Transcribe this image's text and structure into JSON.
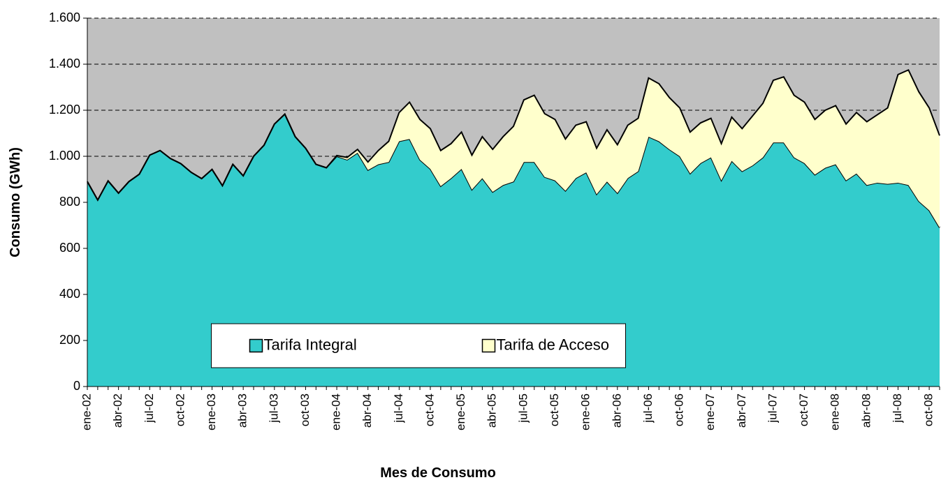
{
  "chart_data": {
    "type": "stacked_area",
    "x_label": "Mes de Consumo",
    "y_label": "Consumo (GWh)",
    "categories": [
      "ene-02",
      null,
      null,
      "abr-02",
      null,
      null,
      "jul-02",
      null,
      null,
      "oct-02",
      null,
      null,
      "ene-03",
      null,
      null,
      "abr-03",
      null,
      null,
      "jul-03",
      null,
      null,
      "oct-03",
      null,
      null,
      "ene-04",
      null,
      null,
      "abr-04",
      null,
      null,
      "jul-04",
      null,
      null,
      "oct-04",
      null,
      null,
      "ene-05",
      null,
      null,
      "abr-05",
      null,
      null,
      "jul-05",
      null,
      null,
      "oct-05",
      null,
      null,
      "ene-06",
      null,
      null,
      "abr-06",
      null,
      null,
      "jul-06",
      null,
      null,
      "oct-06",
      null,
      null,
      "ene-07",
      null,
      null,
      "abr-07",
      null,
      null,
      "jul-07",
      null,
      null,
      "oct-07",
      null,
      null,
      "ene-08",
      null,
      null,
      "abr-08",
      null,
      null,
      "jul-08",
      null,
      null,
      "oct-08",
      null
    ],
    "series": [
      {
        "name": "Tarifa Integral",
        "color": "#33cccc",
        "values": [
          890,
          810,
          893,
          840,
          890,
          922,
          1005,
          1025,
          990,
          968,
          930,
          903,
          943,
          872,
          965,
          915,
          1000,
          1048,
          1140,
          1183,
          1085,
          1035,
          965,
          950,
          1000,
          985,
          1015,
          940,
          965,
          975,
          1065,
          1075,
          985,
          945,
          870,
          905,
          945,
          855,
          905,
          845,
          875,
          890,
          975,
          975,
          910,
          895,
          850,
          905,
          930,
          835,
          890,
          840,
          905,
          935,
          1085,
          1065,
          1030,
          1000,
          925,
          970,
          995,
          895,
          980,
          935,
          960,
          995,
          1060,
          1060,
          995,
          970,
          920,
          950,
          965,
          895,
          925,
          875,
          885,
          880,
          885,
          875,
          805,
          765,
          690
        ]
      },
      {
        "name": "Tarifa de Acceso",
        "color": "#ffffcc",
        "values": [
          0,
          0,
          0,
          0,
          0,
          0,
          0,
          0,
          0,
          0,
          0,
          0,
          0,
          0,
          0,
          0,
          0,
          0,
          0,
          0,
          0,
          0,
          0,
          0,
          3,
          10,
          15,
          35,
          60,
          90,
          125,
          160,
          175,
          175,
          155,
          150,
          160,
          150,
          180,
          185,
          210,
          240,
          270,
          290,
          275,
          265,
          225,
          230,
          220,
          200,
          225,
          210,
          230,
          230,
          255,
          250,
          225,
          210,
          180,
          175,
          170,
          160,
          190,
          185,
          215,
          235,
          270,
          285,
          270,
          265,
          240,
          250,
          255,
          245,
          265,
          275,
          295,
          330,
          470,
          500,
          475,
          445,
          400
        ]
      }
    ],
    "ylim": [
      0,
      1600
    ],
    "yticks": [
      0,
      200,
      400,
      600,
      800,
      {
        "value": 1000,
        "label": "1.000"
      },
      {
        "value": 1200,
        "label": "1.200"
      },
      {
        "value": 1400,
        "label": "1.400"
      },
      {
        "value": 1600,
        "label": "1.600"
      }
    ],
    "grid": true,
    "plot_background": "#c0c0c0",
    "legend": "lower center"
  }
}
